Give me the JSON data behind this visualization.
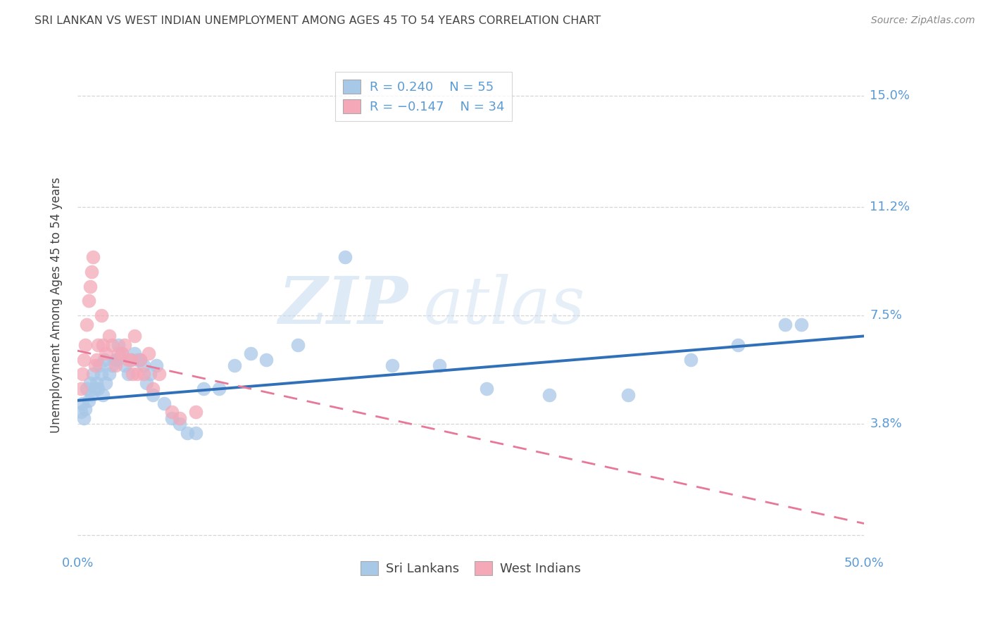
{
  "title": "SRI LANKAN VS WEST INDIAN UNEMPLOYMENT AMONG AGES 45 TO 54 YEARS CORRELATION CHART",
  "source": "Source: ZipAtlas.com",
  "ylabel": "Unemployment Among Ages 45 to 54 years",
  "xlim": [
    0.0,
    0.5
  ],
  "ylim": [
    -0.005,
    0.162
  ],
  "yticks": [
    0.0,
    0.038,
    0.075,
    0.112,
    0.15
  ],
  "ytick_labels": [
    "",
    "3.8%",
    "7.5%",
    "11.2%",
    "15.0%"
  ],
  "xticks": [
    0.0,
    0.05,
    0.1,
    0.15,
    0.2,
    0.25,
    0.3,
    0.35,
    0.4,
    0.45,
    0.5
  ],
  "xtick_labels": [
    "0.0%",
    "",
    "",
    "",
    "",
    "",
    "",
    "",
    "",
    "",
    "50.0%"
  ],
  "legend_r1": "R = 0.240",
  "legend_n1": "N = 55",
  "legend_r2": "R = -0.147",
  "legend_n2": "N = 34",
  "color_blue": "#A8C8E8",
  "color_pink": "#F4A8B8",
  "color_line_blue": "#3070B8",
  "color_line_pink": "#E87898",
  "watermark_zip": "ZIP",
  "watermark_atlas": "atlas",
  "sri_lankan_x": [
    0.002,
    0.003,
    0.004,
    0.005,
    0.006,
    0.007,
    0.008,
    0.009,
    0.01,
    0.011,
    0.012,
    0.013,
    0.014,
    0.015,
    0.016,
    0.017,
    0.018,
    0.02,
    0.022,
    0.024,
    0.025,
    0.026,
    0.028,
    0.03,
    0.032,
    0.034,
    0.036,
    0.038,
    0.04,
    0.042,
    0.044,
    0.046,
    0.048,
    0.05,
    0.055,
    0.06,
    0.065,
    0.07,
    0.075,
    0.08,
    0.09,
    0.1,
    0.11,
    0.12,
    0.14,
    0.17,
    0.2,
    0.23,
    0.26,
    0.3,
    0.35,
    0.39,
    0.42,
    0.45,
    0.46
  ],
  "sri_lankan_y": [
    0.042,
    0.045,
    0.04,
    0.043,
    0.05,
    0.046,
    0.052,
    0.048,
    0.055,
    0.05,
    0.052,
    0.05,
    0.058,
    0.055,
    0.048,
    0.06,
    0.052,
    0.055,
    0.058,
    0.06,
    0.06,
    0.065,
    0.062,
    0.058,
    0.055,
    0.06,
    0.062,
    0.06,
    0.06,
    0.058,
    0.052,
    0.055,
    0.048,
    0.058,
    0.045,
    0.04,
    0.038,
    0.035,
    0.035,
    0.05,
    0.05,
    0.058,
    0.062,
    0.06,
    0.065,
    0.095,
    0.058,
    0.058,
    0.05,
    0.048,
    0.048,
    0.06,
    0.065,
    0.072,
    0.072
  ],
  "west_indian_x": [
    0.002,
    0.003,
    0.004,
    0.005,
    0.006,
    0.007,
    0.008,
    0.009,
    0.01,
    0.011,
    0.012,
    0.013,
    0.015,
    0.016,
    0.018,
    0.02,
    0.022,
    0.024,
    0.026,
    0.028,
    0.03,
    0.032,
    0.034,
    0.035,
    0.036,
    0.038,
    0.04,
    0.042,
    0.045,
    0.048,
    0.052,
    0.06,
    0.065,
    0.075
  ],
  "west_indian_y": [
    0.05,
    0.055,
    0.06,
    0.065,
    0.072,
    0.08,
    0.085,
    0.09,
    0.095,
    0.058,
    0.06,
    0.065,
    0.075,
    0.065,
    0.062,
    0.068,
    0.065,
    0.058,
    0.062,
    0.062,
    0.065,
    0.06,
    0.06,
    0.055,
    0.068,
    0.055,
    0.06,
    0.055,
    0.062,
    0.05,
    0.055,
    0.042,
    0.04,
    0.042
  ],
  "sl_trendline_x0": 0.0,
  "sl_trendline_y0": 0.046,
  "sl_trendline_x1": 0.5,
  "sl_trendline_y1": 0.068,
  "wi_trendline_x0": 0.0,
  "wi_trendline_y0": 0.063,
  "wi_trendline_x1": 0.5,
  "wi_trendline_y1": 0.004,
  "background_color": "#FFFFFF",
  "grid_color": "#CCCCCC",
  "title_color": "#444444",
  "axis_color": "#5B9BD5",
  "right_label_color": "#5B9BD5"
}
